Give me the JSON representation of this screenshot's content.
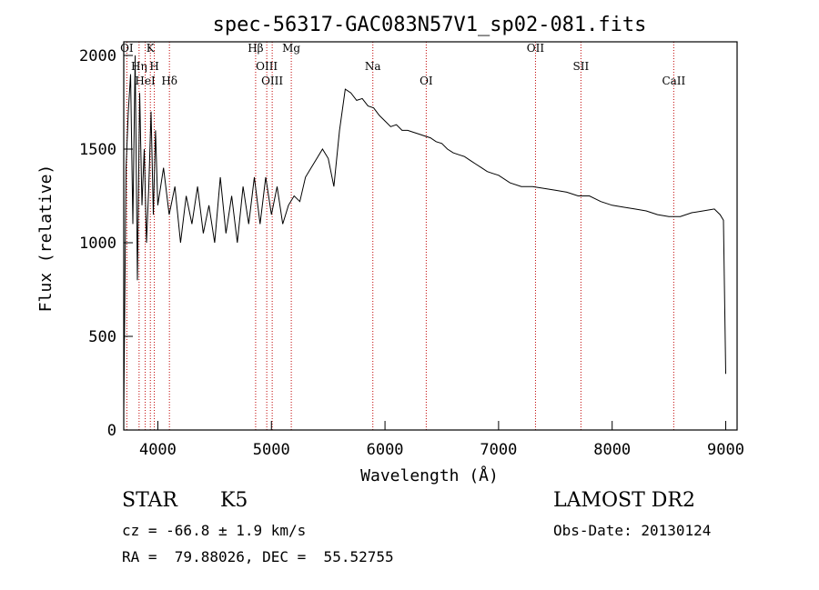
{
  "chart_data": {
    "type": "line",
    "title": "spec-56317-GAC083N57V1_sp02-081.fits",
    "xlabel": "Wavelength (Å)",
    "ylabel": "Flux (relative)",
    "xlim": [
      3700,
      9100
    ],
    "ylim": [
      0,
      2000
    ],
    "xticks": [
      4000,
      5000,
      6000,
      7000,
      8000,
      9000
    ],
    "yticks": [
      0,
      500,
      1000,
      1500,
      2000
    ],
    "grid": false,
    "series": [
      {
        "x": [
          3700,
          3720,
          3740,
          3760,
          3780,
          3800,
          3820,
          3840,
          3860,
          3880,
          3900,
          3920,
          3940,
          3960,
          3980,
          4000,
          4050,
          4100,
          4150,
          4200,
          4250,
          4300,
          4350,
          4400,
          4450,
          4500,
          4550,
          4600,
          4650,
          4700,
          4750,
          4800,
          4850,
          4900,
          4950,
          5000,
          5050,
          5100,
          5150,
          5200,
          5250,
          5300,
          5350,
          5400,
          5450,
          5500,
          5550,
          5600,
          5650,
          5700,
          5750,
          5800,
          5850,
          5900,
          5950,
          6000,
          6050,
          6100,
          6150,
          6200,
          6250,
          6300,
          6350,
          6400,
          6450,
          6500,
          6550,
          6600,
          6650,
          6700,
          6750,
          6800,
          6850,
          6900,
          6950,
          7000,
          7100,
          7200,
          7300,
          7400,
          7500,
          7600,
          7700,
          7800,
          7900,
          8000,
          8100,
          8200,
          8300,
          8400,
          8500,
          8600,
          8700,
          8800,
          8900,
          8950,
          8980,
          9000
        ],
        "y": [
          100,
          1400,
          1700,
          1900,
          1100,
          2000,
          800,
          1800,
          1200,
          1500,
          1000,
          1300,
          1700,
          1150,
          1600,
          1200,
          1400,
          1150,
          1300,
          1000,
          1250,
          1100,
          1300,
          1050,
          1200,
          1000,
          1350,
          1050,
          1250,
          1000,
          1300,
          1100,
          1350,
          1100,
          1350,
          1150,
          1300,
          1100,
          1200,
          1250,
          1220,
          1350,
          1400,
          1450,
          1500,
          1450,
          1300,
          1600,
          1820,
          1800,
          1760,
          1770,
          1730,
          1720,
          1680,
          1650,
          1620,
          1630,
          1600,
          1600,
          1590,
          1580,
          1570,
          1560,
          1540,
          1530,
          1500,
          1480,
          1470,
          1460,
          1440,
          1420,
          1400,
          1380,
          1370,
          1360,
          1320,
          1300,
          1300,
          1290,
          1280,
          1270,
          1250,
          1250,
          1220,
          1200,
          1190,
          1180,
          1170,
          1150,
          1140,
          1140,
          1160,
          1170,
          1180,
          1150,
          1120,
          300
        ]
      }
    ],
    "lines": [
      {
        "label": "OI",
        "x": 3727
      },
      {
        "label": "Hη",
        "x": 3835
      },
      {
        "label": "HeI",
        "x": 3889
      },
      {
        "label": "K",
        "x": 3934
      },
      {
        "label": "H",
        "x": 3969
      },
      {
        "label": "Hδ",
        "x": 4102
      },
      {
        "label": "Hβ",
        "x": 4861
      },
      {
        "label": "OIII",
        "x": 4959
      },
      {
        "label": "OIII",
        "x": 5007
      },
      {
        "label": "Mg",
        "x": 5175
      },
      {
        "label": "Na",
        "x": 5893
      },
      {
        "label": "OI",
        "x": 6363
      },
      {
        "label": "OII",
        "x": 7325
      },
      {
        "label": "SII",
        "x": 7725
      },
      {
        "label": "CaII",
        "x": 8542
      }
    ]
  },
  "info": {
    "class_label": "STAR",
    "subclass_label": "K5",
    "survey_label": "LAMOST DR2",
    "cz_text": "cz = -66.8 ± 1.9 km/s",
    "obs_date_text": "Obs-Date: 20130124",
    "coords_text": "RA =  79.88026, DEC =  55.52755"
  }
}
